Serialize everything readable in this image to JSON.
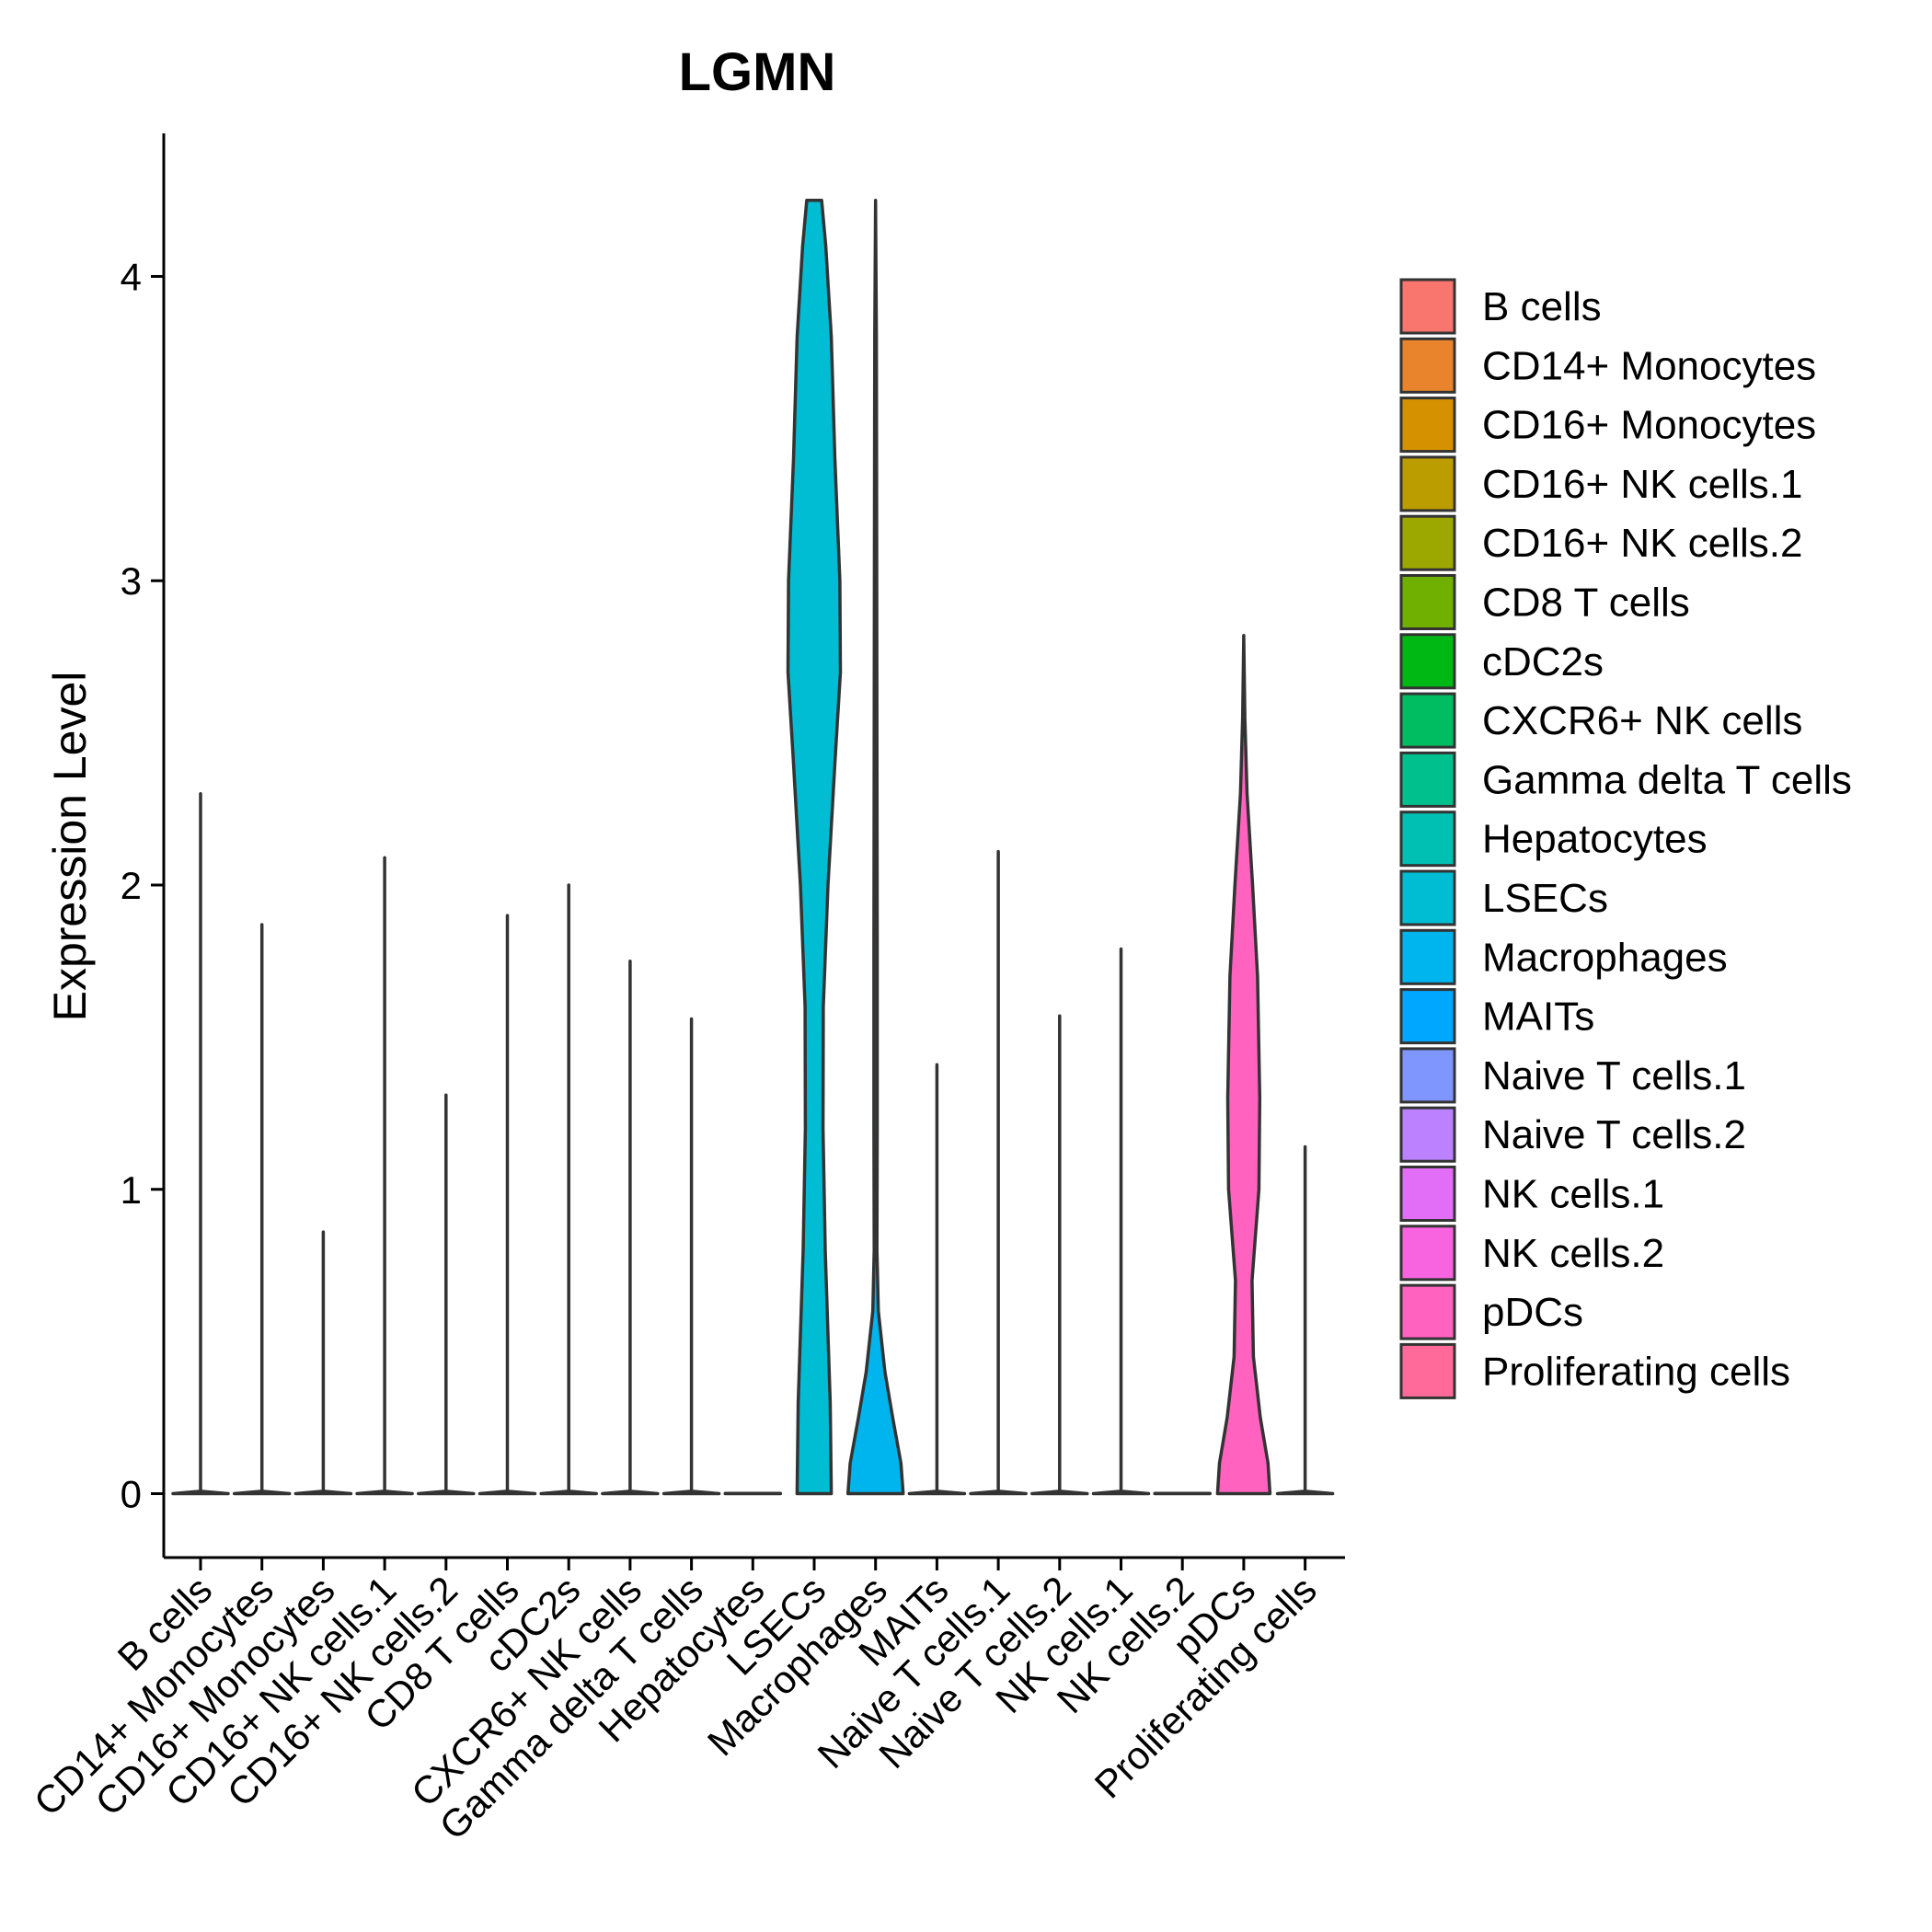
{
  "chart_data": {
    "type": "violin",
    "title": "LGMN",
    "xlabel": "",
    "ylabel": "Expression Level",
    "ylim": [
      -0.21,
      4.47
    ],
    "yticks": [
      0,
      1,
      2,
      3,
      4
    ],
    "ytick_labels": [
      "0",
      "1",
      "2",
      "3",
      "4"
    ],
    "legend_position": "right",
    "categories": [
      "B cells",
      "CD14+ Monocytes",
      "CD16+ Monocytes",
      "CD16+ NK cells.1",
      "CD16+ NK cells.2",
      "CD8 T cells",
      "cDC2s",
      "CXCR6+ NK cells",
      "Gamma delta T cells",
      "Hepatocytes",
      "LSECs",
      "Macrophages",
      "MAITs",
      "Naive T cells.1",
      "Naive T cells.2",
      "NK cells.1",
      "NK cells.2",
      "pDCs",
      "Proliferating cells"
    ],
    "colors": [
      "#F8766D",
      "#E9842C",
      "#D69100",
      "#BC9D00",
      "#9CA700",
      "#6FB000",
      "#00B813",
      "#00BD61",
      "#00C08E",
      "#00C0B4",
      "#00BDD4",
      "#00B5EE",
      "#00A7FF",
      "#7F96FF",
      "#BC81FF",
      "#E26EF7",
      "#F863DF",
      "#FF62BF",
      "#FF6A9A"
    ],
    "max_values": [
      2.3,
      1.87,
      0.86,
      2.09,
      1.31,
      1.9,
      2.0,
      1.75,
      1.56,
      0,
      4.25,
      4.25,
      1.41,
      2.11,
      1.57,
      1.79,
      0,
      2.82,
      1.14
    ],
    "density_profiles": [
      [
        [
          0,
          1.0
        ],
        [
          0.008,
          0.0
        ],
        [
          2.3,
          0.0
        ]
      ],
      [
        [
          0,
          1.0
        ],
        [
          0.008,
          0.0
        ],
        [
          1.87,
          0.0
        ]
      ],
      [
        [
          0,
          1.0
        ],
        [
          0.008,
          0.0
        ],
        [
          0.86,
          0.0
        ]
      ],
      [
        [
          0,
          1.0
        ],
        [
          0.008,
          0.0
        ],
        [
          2.09,
          0.0
        ]
      ],
      [
        [
          0,
          1.0
        ],
        [
          0.008,
          0.0
        ],
        [
          1.31,
          0.0
        ]
      ],
      [
        [
          0,
          1.0
        ],
        [
          0.008,
          0.0
        ],
        [
          1.9,
          0.0
        ]
      ],
      [
        [
          0,
          1.0
        ],
        [
          0.008,
          0.0
        ],
        [
          2.0,
          0.0
        ]
      ],
      [
        [
          0,
          1.0
        ],
        [
          0.008,
          0.0
        ],
        [
          1.75,
          0.0
        ]
      ],
      [
        [
          0,
          1.0
        ],
        [
          0.008,
          0.0
        ],
        [
          1.56,
          0.0
        ]
      ],
      [
        [
          0,
          1.0
        ],
        [
          0.001,
          1.0
        ]
      ],
      [
        [
          0,
          0.62
        ],
        [
          0.3,
          0.58
        ],
        [
          0.8,
          0.4
        ],
        [
          1.2,
          0.32
        ],
        [
          1.6,
          0.33
        ],
        [
          2.0,
          0.5
        ],
        [
          2.4,
          0.75
        ],
        [
          2.7,
          0.95
        ],
        [
          3.0,
          0.93
        ],
        [
          3.4,
          0.75
        ],
        [
          3.8,
          0.62
        ],
        [
          4.1,
          0.42
        ],
        [
          4.25,
          0.27
        ]
      ],
      [
        [
          0,
          1.0
        ],
        [
          0.1,
          0.92
        ],
        [
          0.25,
          0.62
        ],
        [
          0.4,
          0.34
        ],
        [
          0.6,
          0.1
        ],
        [
          0.8,
          0.05
        ],
        [
          1.2,
          0.06
        ],
        [
          1.8,
          0.06
        ],
        [
          2.5,
          0.05
        ],
        [
          3.2,
          0.04
        ],
        [
          3.8,
          0.03
        ],
        [
          4.25,
          0.0
        ]
      ],
      [
        [
          0,
          1.0
        ],
        [
          0.008,
          0.0
        ],
        [
          1.41,
          0.0
        ]
      ],
      [
        [
          0,
          1.0
        ],
        [
          0.008,
          0.0
        ],
        [
          2.11,
          0.0
        ]
      ],
      [
        [
          0,
          1.0
        ],
        [
          0.008,
          0.0
        ],
        [
          1.57,
          0.0
        ]
      ],
      [
        [
          0,
          1.0
        ],
        [
          0.008,
          0.0
        ],
        [
          1.79,
          0.0
        ]
      ],
      [
        [
          0,
          1.0
        ],
        [
          0.001,
          1.0
        ]
      ],
      [
        [
          0,
          0.95
        ],
        [
          0.1,
          0.88
        ],
        [
          0.25,
          0.6
        ],
        [
          0.45,
          0.35
        ],
        [
          0.7,
          0.3
        ],
        [
          1.0,
          0.55
        ],
        [
          1.3,
          0.58
        ],
        [
          1.7,
          0.5
        ],
        [
          2.0,
          0.32
        ],
        [
          2.3,
          0.12
        ],
        [
          2.55,
          0.04
        ],
        [
          2.82,
          0.0
        ]
      ],
      [
        [
          0,
          1.0
        ],
        [
          0.008,
          0.0
        ],
        [
          1.14,
          0.0
        ]
      ]
    ]
  }
}
